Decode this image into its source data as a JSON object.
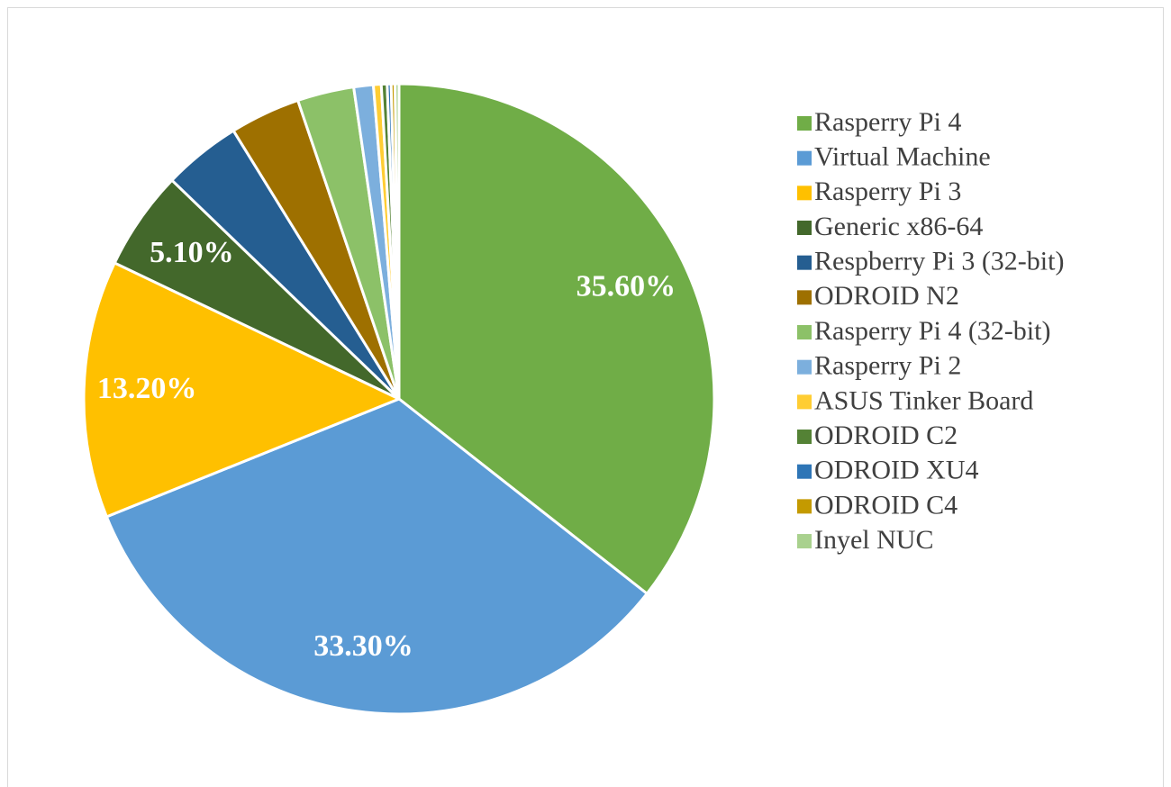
{
  "chart_data": {
    "type": "pie",
    "categories": [
      "Rasperry Pi 4",
      "Virtual Machine",
      "Rasperry Pi 3",
      "Generic x86-64",
      "Respberry Pi 3 (32-bit)",
      "ODROID N2",
      "Rasperry Pi 4 (32-bit)",
      "Rasperry Pi 2",
      "ASUS Tinker Board",
      "ODROID C2",
      "ODROID XU4",
      "ODROID C4",
      "Inyel NUC"
    ],
    "values": [
      35.6,
      33.3,
      13.2,
      5.1,
      4.0,
      3.6,
      2.9,
      1.0,
      0.4,
      0.3,
      0.2,
      0.2,
      0.2
    ],
    "value_labels": [
      "35.60%",
      "33.30%",
      "13.20%",
      "5.10%",
      null,
      null,
      null,
      null,
      null,
      null,
      null,
      null,
      null
    ],
    "colors": [
      "#70ad47",
      "#5b9bd5",
      "#ffc000",
      "#43682b",
      "#255e91",
      "#9e7000",
      "#8cc168",
      "#7cafdd",
      "#ffcd33",
      "#548235",
      "#2e75b6",
      "#c49a00",
      "#a9d18e"
    ],
    "legend": "right"
  }
}
